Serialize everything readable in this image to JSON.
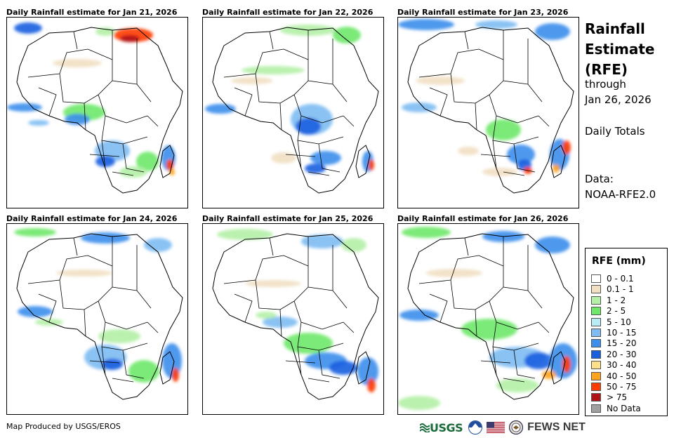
{
  "panels": [
    {
      "title": "Daily Rainfall estimate for Jan 21, 2026"
    },
    {
      "title": "Daily Rainfall estimate for Jan 22, 2026"
    },
    {
      "title": "Daily Rainfall estimate for Jan 23, 2026"
    },
    {
      "title": "Daily Rainfall estimate for Jan 24, 2026"
    },
    {
      "title": "Daily Rainfall estimate for Jan 25, 2026"
    },
    {
      "title": "Daily Rainfall estimate for Jan 26, 2026"
    }
  ],
  "side": {
    "title_line1": "Rainfall",
    "title_line2": "Estimate",
    "title_line3": "(RFE)",
    "through_label": "through",
    "through_date": "Jan 26, 2026",
    "totals_label": "Daily Totals",
    "data_label": "Data:",
    "data_source": "NOAA-RFE2.0"
  },
  "legend": {
    "title": "RFE (mm)",
    "items": [
      {
        "label": "0 - 0.1",
        "color": "#ffffff"
      },
      {
        "label": "0.1 - 1",
        "color": "#f1dfc2"
      },
      {
        "label": "1 - 2",
        "color": "#b4f0a6"
      },
      {
        "label": "2 - 5",
        "color": "#6fe86a"
      },
      {
        "label": "5 - 10",
        "color": "#b8ecf5"
      },
      {
        "label": "10 - 15",
        "color": "#7dbbf2"
      },
      {
        "label": "15 - 20",
        "color": "#3c8eec"
      },
      {
        "label": "20 - 30",
        "color": "#1a5ee0"
      },
      {
        "label": "30 - 40",
        "color": "#ffe08a"
      },
      {
        "label": "40 - 50",
        "color": "#ffa31a"
      },
      {
        "label": "50 - 75",
        "color": "#ff3c00"
      },
      {
        "label": "> 75",
        "color": "#b01515"
      },
      {
        "label": "No Data",
        "color": "#a0a0a0"
      }
    ]
  },
  "credit": "Map Produced by USGS/EROS",
  "logos": {
    "usgs": "USGS",
    "fews": "FEWS NET"
  }
}
